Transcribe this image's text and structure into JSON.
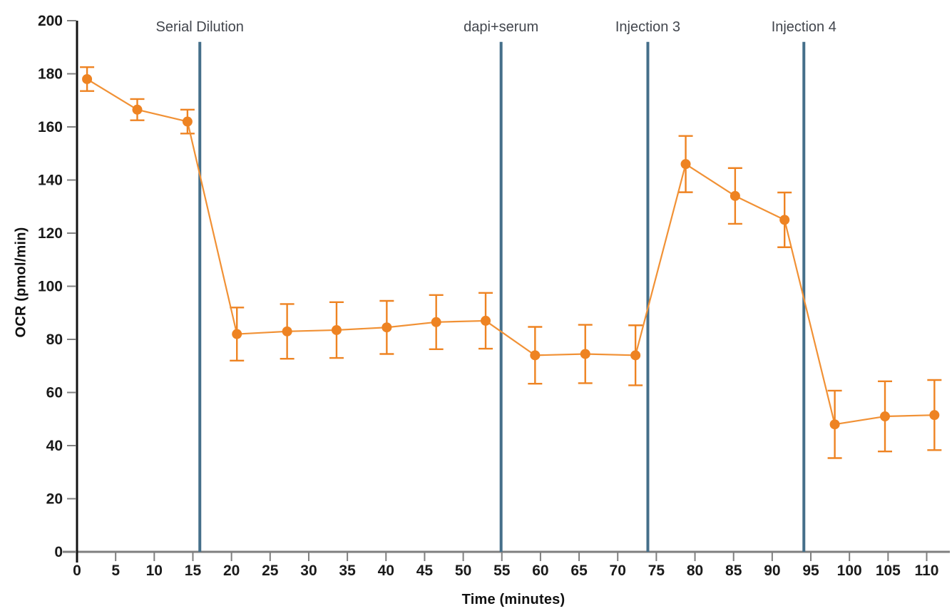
{
  "chart_data": {
    "type": "line",
    "title": "",
    "xlabel": "Time (minutes)",
    "ylabel": "OCR (pmol/min)",
    "xlim": [
      0,
      113
    ],
    "ylim": [
      0,
      200
    ],
    "x_ticks": [
      0,
      5,
      10,
      15,
      20,
      25,
      30,
      35,
      40,
      45,
      50,
      55,
      60,
      65,
      70,
      75,
      80,
      85,
      90,
      95,
      100,
      105,
      110
    ],
    "y_ticks": [
      0,
      20,
      40,
      60,
      80,
      100,
      120,
      140,
      160,
      180,
      200
    ],
    "grid": false,
    "legend_position": "none",
    "series": [
      {
        "name": "OCR",
        "marker": "circle",
        "color": "#ee8322",
        "line_color": "#f19135",
        "x": [
          1.3,
          7.8,
          14.3,
          20.7,
          27.2,
          33.6,
          40.1,
          46.5,
          52.9,
          59.3,
          65.8,
          72.3,
          78.8,
          85.2,
          91.6,
          98.1,
          104.6,
          111.0
        ],
        "y": [
          178,
          166.5,
          162,
          82,
          83,
          83.5,
          84.5,
          86.5,
          87,
          74,
          74.5,
          74,
          146,
          134,
          125,
          48,
          51,
          51.5
        ],
        "yerr": [
          4.5,
          4,
          4.5,
          10,
          10.3,
          10.5,
          10,
          10.2,
          10.5,
          10.7,
          11,
          11.3,
          10.6,
          10.5,
          10.3,
          12.7,
          13.2,
          13.2
        ]
      }
    ],
    "events": [
      {
        "label": "Serial Dilution",
        "x": 15.9
      },
      {
        "label": "dapi+serum",
        "x": 54.9
      },
      {
        "label": "Injection 3",
        "x": 73.9
      },
      {
        "label": "Injection 4",
        "x": 94.1
      }
    ],
    "event_line_color": "#456f8a",
    "event_line_top": 192,
    "axis_color": "#7f7f7f",
    "y_axis_color": "#111111",
    "tick_text_color": "#1a1a1a",
    "annotation_text_color": "#42464d",
    "background_color": "#ffffff"
  }
}
